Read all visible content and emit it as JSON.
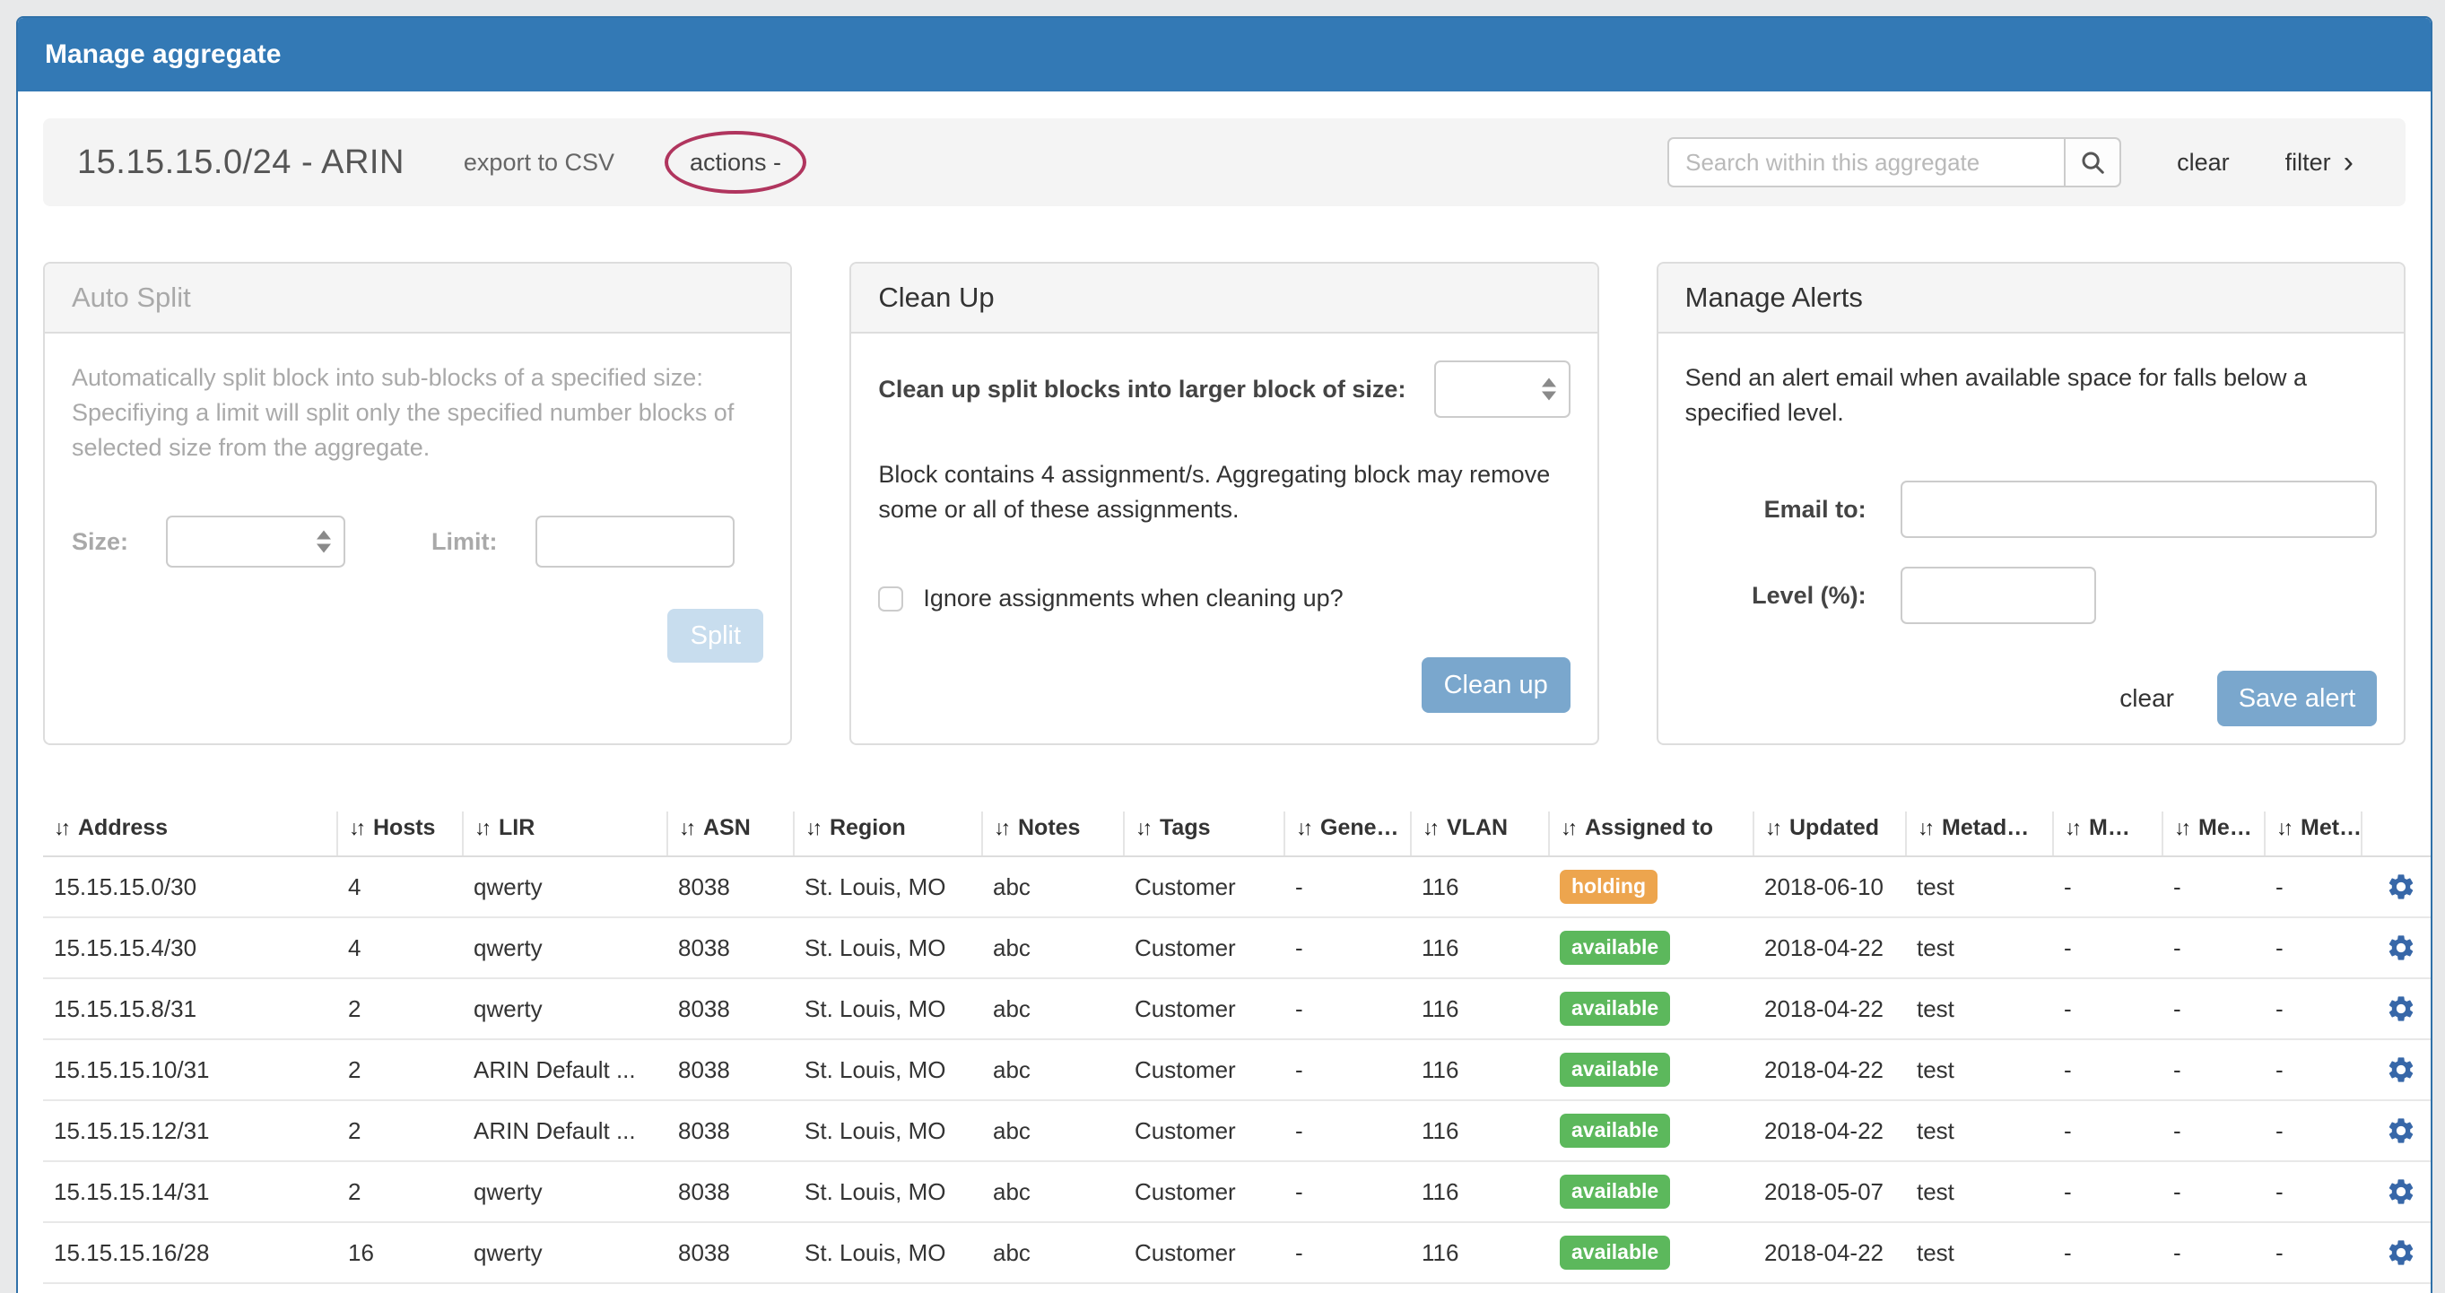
{
  "page": {
    "title": "Manage aggregate"
  },
  "toolbar": {
    "aggregate_title": "15.15.15.0/24 - ARIN",
    "export_csv_label": "export to CSV",
    "actions_label": "actions -",
    "search_placeholder": "Search within this aggregate",
    "clear_label": "clear",
    "filter_label": "filter",
    "filter_chevron": "›"
  },
  "panels": {
    "auto_split": {
      "title": "Auto Split",
      "description": "Automatically split block into sub-blocks of a specified size: Specifiying a limit will split only the specified number blocks of selected size from the aggregate.",
      "size_label": "Size:",
      "size_value": "",
      "limit_label": "Limit:",
      "limit_value": "",
      "split_button": "Split"
    },
    "clean_up": {
      "title": "Clean Up",
      "size_select_label": "Clean up split blocks into larger block of size:",
      "size_value": "",
      "note": "Block contains 4 assignment/s. Aggregating block may remove some or all of these assignments.",
      "checkbox_label": "Ignore assignments when cleaning up?",
      "checkbox_checked": false,
      "clean_up_button": "Clean up"
    },
    "manage_alerts": {
      "title": "Manage Alerts",
      "description": "Send an alert email when available space for falls below a specified level.",
      "email_label": "Email to:",
      "email_value": "",
      "level_label": "Level (%):",
      "level_value": "",
      "clear_label": "clear",
      "save_button": "Save alert"
    }
  },
  "table": {
    "sort_icon": "↓↑",
    "columns": [
      "Address",
      "Hosts",
      "LIR",
      "ASN",
      "Region",
      "Notes",
      "Tags",
      "Gene…",
      "VLAN",
      "Assigned to",
      "Updated",
      "Metad…",
      "M…",
      "Me…",
      "Met…"
    ],
    "status_colors": {
      "holding": "#eda54e",
      "available": "#5cb85c"
    },
    "rows": [
      {
        "address": "15.15.15.0/30",
        "hosts": "4",
        "lir": "qwerty",
        "asn": "8038",
        "region": "St. Louis, MO",
        "notes": "abc",
        "tags": "Customer",
        "gene": "-",
        "vlan": "116",
        "assigned_to": "holding",
        "updated": "2018-06-10",
        "metad": "test",
        "m": "-",
        "me": "-",
        "met": "-"
      },
      {
        "address": "15.15.15.4/30",
        "hosts": "4",
        "lir": "qwerty",
        "asn": "8038",
        "region": "St. Louis, MO",
        "notes": "abc",
        "tags": "Customer",
        "gene": "-",
        "vlan": "116",
        "assigned_to": "available",
        "updated": "2018-04-22",
        "metad": "test",
        "m": "-",
        "me": "-",
        "met": "-"
      },
      {
        "address": "15.15.15.8/31",
        "hosts": "2",
        "lir": "qwerty",
        "asn": "8038",
        "region": "St. Louis, MO",
        "notes": "abc",
        "tags": "Customer",
        "gene": "-",
        "vlan": "116",
        "assigned_to": "available",
        "updated": "2018-04-22",
        "metad": "test",
        "m": "-",
        "me": "-",
        "met": "-"
      },
      {
        "address": "15.15.15.10/31",
        "hosts": "2",
        "lir": "ARIN Default ...",
        "asn": "8038",
        "region": "St. Louis, MO",
        "notes": "abc",
        "tags": "Customer",
        "gene": "-",
        "vlan": "116",
        "assigned_to": "available",
        "updated": "2018-04-22",
        "metad": "test",
        "m": "-",
        "me": "-",
        "met": "-"
      },
      {
        "address": "15.15.15.12/31",
        "hosts": "2",
        "lir": "ARIN Default ...",
        "asn": "8038",
        "region": "St. Louis, MO",
        "notes": "abc",
        "tags": "Customer",
        "gene": "-",
        "vlan": "116",
        "assigned_to": "available",
        "updated": "2018-04-22",
        "metad": "test",
        "m": "-",
        "me": "-",
        "met": "-"
      },
      {
        "address": "15.15.15.14/31",
        "hosts": "2",
        "lir": "qwerty",
        "asn": "8038",
        "region": "St. Louis, MO",
        "notes": "abc",
        "tags": "Customer",
        "gene": "-",
        "vlan": "116",
        "assigned_to": "available",
        "updated": "2018-05-07",
        "metad": "test",
        "m": "-",
        "me": "-",
        "met": "-"
      },
      {
        "address": "15.15.15.16/28",
        "hosts": "16",
        "lir": "qwerty",
        "asn": "8038",
        "region": "St. Louis, MO",
        "notes": "abc",
        "tags": "Customer",
        "gene": "-",
        "vlan": "116",
        "assigned_to": "available",
        "updated": "2018-04-22",
        "metad": "test",
        "m": "-",
        "me": "-",
        "met": "-"
      }
    ]
  },
  "colors": {
    "header_blue": "#3379b5",
    "panel_border_blue": "#3071a9",
    "button_blue": "#7aa7cd",
    "button_blue_disabled": "#c8ddee",
    "annotation_red": "#b0355e",
    "gear_blue": "#3767a8",
    "badge_holding": "#eda54e",
    "badge_available": "#5cb85c"
  }
}
